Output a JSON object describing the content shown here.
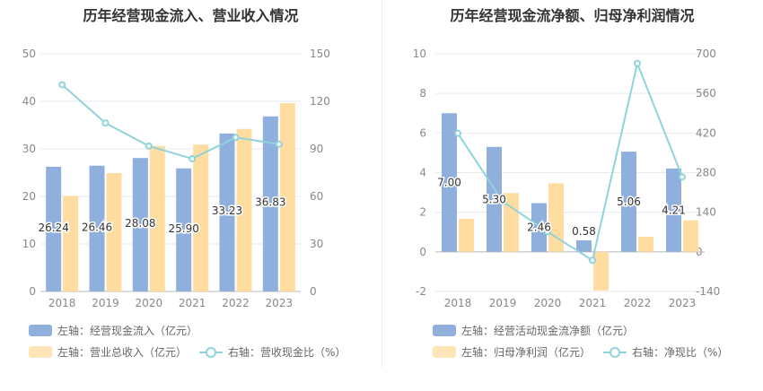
{
  "colors": {
    "bar1": "#8fb0dc",
    "bar2": "#ffdca0",
    "line": "#8fd3dc"
  },
  "charts": [
    {
      "title": "历年经营现金流入、营业收入情况",
      "legend": [
        {
          "label": "左轴：经营现金流入（亿元）"
        },
        {
          "label": "左轴：营业总收入（亿元）"
        },
        {
          "label": "右轴：营收现金比（%）"
        }
      ]
    },
    {
      "title": "历年经营现金流净额、归母净利润情况",
      "legend": [
        {
          "label": "左轴：经营活动现金流净额（亿元）"
        },
        {
          "label": "左轴：归母净利润（亿元）"
        },
        {
          "label": "右轴：净现比（%）"
        }
      ]
    }
  ],
  "chart_data": [
    {
      "type": "bar",
      "title": "历年经营现金流入、营业收入情况",
      "categories": [
        "2018",
        "2019",
        "2020",
        "2021",
        "2022",
        "2023"
      ],
      "ylim": [
        0,
        50
      ],
      "yticks": [
        0,
        10,
        20,
        30,
        40,
        50
      ],
      "y2lim": [
        0,
        150
      ],
      "y2ticks": [
        0,
        30,
        60,
        90,
        120,
        150
      ],
      "series": [
        {
          "name": "左轴：经营现金流入（亿元）",
          "axis": "left",
          "type": "bar",
          "values": [
            26.24,
            26.46,
            28.08,
            25.9,
            33.23,
            36.83
          ],
          "data_labels": [
            "26.24",
            "26.46",
            "28.08",
            "25.90",
            "33.23",
            "36.83"
          ]
        },
        {
          "name": "左轴：营业总收入（亿元）",
          "axis": "left",
          "type": "bar",
          "values": [
            20.1,
            24.9,
            30.6,
            30.9,
            34.2,
            39.6
          ]
        },
        {
          "name": "右轴：营收现金比（%）",
          "axis": "right",
          "type": "line",
          "values": [
            130.5,
            106.3,
            91.8,
            83.8,
            97.2,
            93.0
          ]
        }
      ]
    },
    {
      "type": "bar",
      "title": "历年经营现金流净额、归母净利润情况",
      "categories": [
        "2018",
        "2019",
        "2020",
        "2021",
        "2022",
        "2023"
      ],
      "ylim": [
        -2,
        10
      ],
      "yticks": [
        -2,
        0,
        2,
        4,
        6,
        8,
        10
      ],
      "y2lim": [
        -140,
        700
      ],
      "y2ticks": [
        -140,
        0,
        140,
        280,
        420,
        560,
        700
      ],
      "series": [
        {
          "name": "左轴：经营活动现金流净额（亿元）",
          "axis": "left",
          "type": "bar",
          "values": [
            7.0,
            5.3,
            2.46,
            0.58,
            5.06,
            4.21
          ],
          "data_labels": [
            "7.00",
            "5.30",
            "2.46",
            "0.58",
            "5.06",
            "4.21"
          ]
        },
        {
          "name": "左轴：归母净利润（亿元）",
          "axis": "left",
          "type": "bar",
          "values": [
            1.67,
            2.97,
            3.46,
            -1.95,
            0.76,
            1.59
          ]
        },
        {
          "name": "右轴：净现比（%）",
          "axis": "right",
          "type": "line",
          "values": [
            419,
            178,
            71,
            -30,
            666,
            265
          ]
        }
      ]
    }
  ]
}
